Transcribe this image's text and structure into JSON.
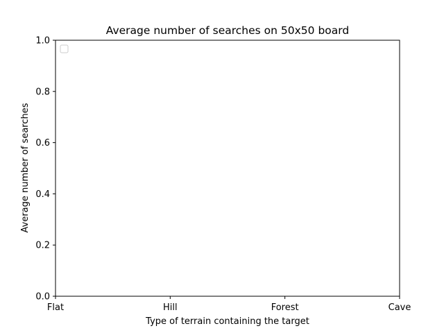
{
  "chart_data": {
    "type": "line",
    "title": "Average number of searches on 50x50 board",
    "xlabel": "Type of terrain containing the target",
    "ylabel": "Average number of searches",
    "categories": [
      "Flat",
      "Hill",
      "Forest",
      "Cave"
    ],
    "ylim": [
      0,
      1
    ],
    "yticks": [
      "0.0",
      "0.2",
      "0.4",
      "0.6",
      "0.8",
      "1.0"
    ],
    "series": [],
    "grid": false,
    "legend": "top-left",
    "legend_entries": []
  }
}
